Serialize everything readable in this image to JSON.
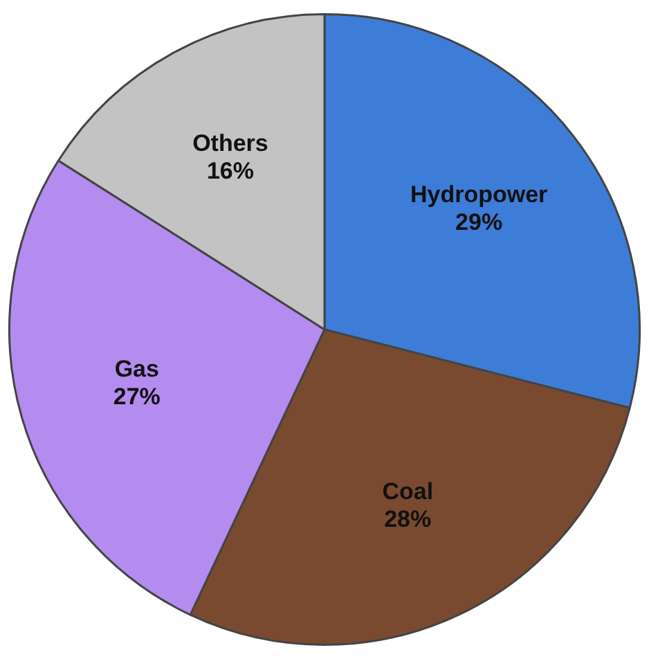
{
  "chart_data": {
    "type": "pie",
    "categories": [
      "Hydropower",
      "Coal",
      "Gas",
      "Others"
    ],
    "values": [
      29,
      28,
      27,
      16
    ],
    "colors": [
      "#3d7dd8",
      "#7a4a30",
      "#b48cf0",
      "#c3c3c3"
    ],
    "value_labels": [
      "29%",
      "28%",
      "27%",
      "16%"
    ]
  }
}
